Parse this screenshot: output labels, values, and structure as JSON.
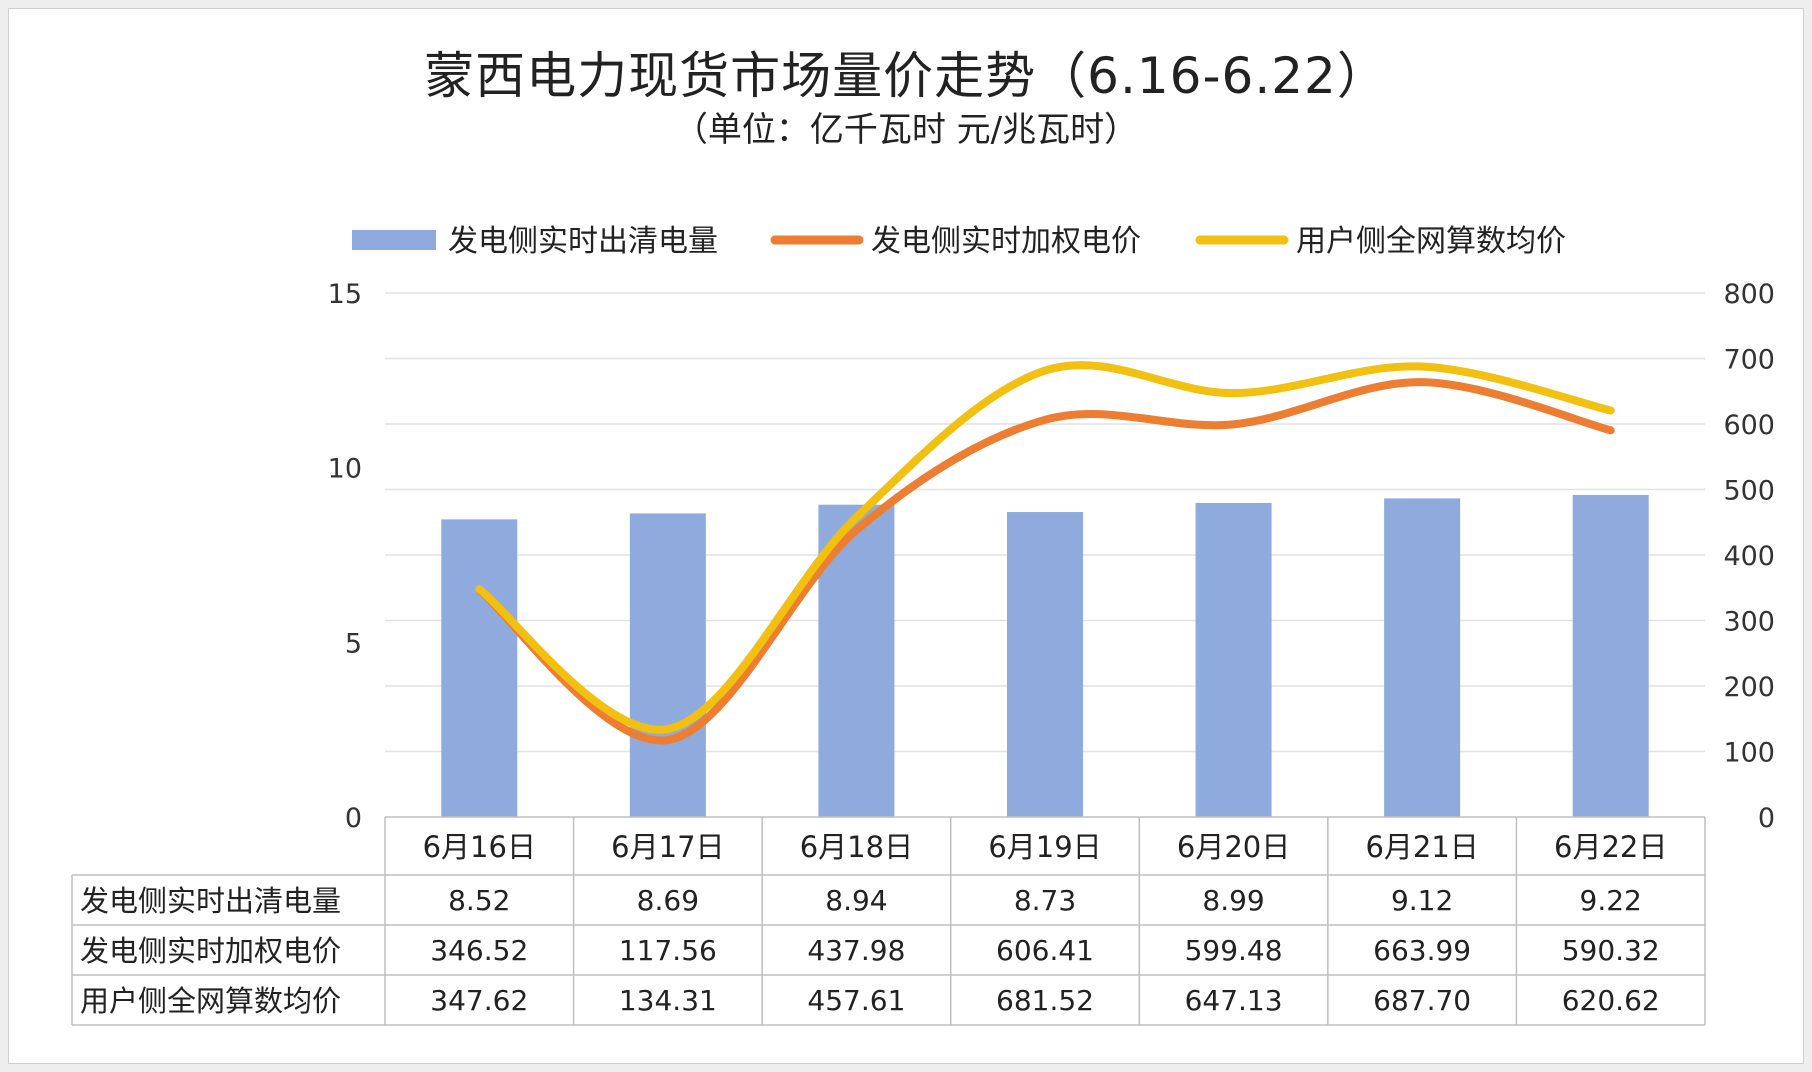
{
  "title": "蒙西电力现货市场量价走势（6.16-6.22）",
  "subtitle": "（单位：亿千瓦时 元/兆瓦时）",
  "chart_data": {
    "type": "bar",
    "categories": [
      "6月16日",
      "6月17日",
      "6月18日",
      "6月19日",
      "6月20日",
      "6月21日",
      "6月22日"
    ],
    "series": [
      {
        "name": "发电侧实时出清电量",
        "kind": "bar",
        "axis": "left",
        "color": "#8faadc",
        "values": [
          8.52,
          8.69,
          8.94,
          8.73,
          8.99,
          9.12,
          9.22
        ],
        "labels": [
          "8.52",
          "8.69",
          "8.94",
          "8.73",
          "8.99",
          "9.12",
          "9.22"
        ]
      },
      {
        "name": "发电侧实时加权电价",
        "kind": "line",
        "axis": "right",
        "color": "#ed7d31",
        "values": [
          346.52,
          117.56,
          437.98,
          606.41,
          599.48,
          663.99,
          590.32
        ],
        "labels": [
          "346.52",
          "117.56",
          "437.98",
          "606.41",
          "599.48",
          "663.99",
          "590.32"
        ]
      },
      {
        "name": "用户侧全网算数均价",
        "kind": "line",
        "axis": "right",
        "color": "#f2c010",
        "values": [
          347.62,
          134.31,
          457.61,
          681.52,
          647.13,
          687.7,
          620.62
        ],
        "labels": [
          "347.62",
          "134.31",
          "457.61",
          "681.52",
          "647.13",
          "687.70",
          "620.62"
        ]
      }
    ],
    "y_left": {
      "min": 0,
      "max": 15,
      "ticks": [
        "0",
        "5",
        "10",
        "15"
      ]
    },
    "y_right": {
      "min": 0,
      "max": 800,
      "ticks": [
        "0",
        "100",
        "200",
        "300",
        "400",
        "500",
        "600",
        "700",
        "800"
      ]
    },
    "grid": true,
    "legend_position": "top",
    "data_table": true
  }
}
